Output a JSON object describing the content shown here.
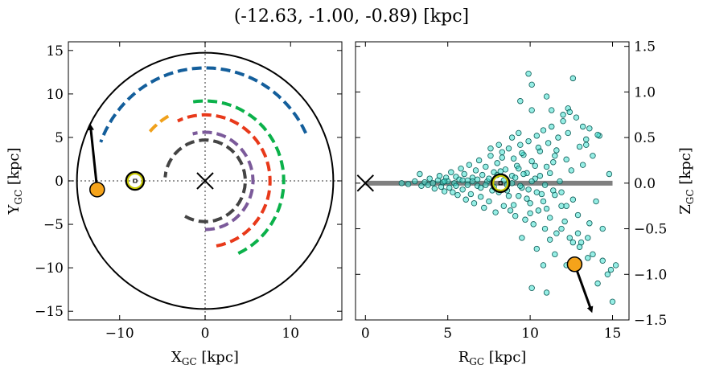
{
  "title": "(-12.63, -1.00, -0.89) [kpc]",
  "chart_data": [
    {
      "type": "scatter",
      "panel": "left",
      "xlabel": "X",
      "xlabel_sub": "GC",
      "xlabel_unit": " [kpc]",
      "ylabel": "Y",
      "ylabel_sub": "GC",
      "ylabel_unit": " [kpc]",
      "xlim": [
        -16,
        16
      ],
      "ylim": [
        -16,
        16
      ],
      "xticks": [
        -10,
        0,
        10
      ],
      "yticks": [
        -15,
        -10,
        -5,
        0,
        5,
        10,
        15
      ],
      "xtick_labels": [
        "−10",
        "0",
        "10"
      ],
      "ytick_labels": [
        "−15",
        "−10",
        "−5",
        "0",
        "5",
        "10",
        "15"
      ],
      "boundary_circle_radius": 15,
      "reference_lines": {
        "x": 0,
        "y": 0,
        "style": "dotted",
        "color": "#777777"
      },
      "galactic_center": {
        "x": 0,
        "y": 0,
        "marker": "x"
      },
      "sun": {
        "x": -8.2,
        "y": 0,
        "marker": "circle-dot",
        "color": "#c8c800"
      },
      "object": {
        "x": -12.63,
        "y": -1.0,
        "color": "#f5a31a"
      },
      "velocity_arrow": {
        "x0": -12.63,
        "y0": -1.0,
        "x1": -13.4,
        "y1": 6.2
      },
      "arms": [
        {
          "color": "#135e9b",
          "radius": 13.0,
          "start_deg": 25,
          "end_deg": 160
        },
        {
          "color": "#0bb14a",
          "radius": 9.2,
          "start_deg": -65,
          "end_deg": 100
        },
        {
          "color": "#e8391a",
          "radius": 7.6,
          "start_deg": -80,
          "end_deg": 115
        },
        {
          "color": "#7b5a9a",
          "radius": 5.6,
          "start_deg": -90,
          "end_deg": 105
        },
        {
          "color": "#444444",
          "radius": 4.7,
          "start_deg": -120,
          "end_deg": 175
        },
        {
          "color": "#f0a11c",
          "radius": 8.6,
          "start_deg": 120,
          "end_deg": 140
        }
      ]
    },
    {
      "type": "scatter",
      "panel": "right",
      "xlabel": "R",
      "xlabel_sub": "GC",
      "xlabel_unit": " [kpc]",
      "ylabel": "Z",
      "ylabel_sub": "GC",
      "ylabel_unit": " [kpc]",
      "xlim": [
        -0.6,
        16
      ],
      "ylim": [
        -1.5,
        1.55
      ],
      "xticks": [
        0,
        5,
        10,
        15
      ],
      "yticks": [
        -1.5,
        -1.0,
        -0.5,
        0.0,
        0.5,
        1.0,
        1.5
      ],
      "xtick_labels": [
        "0",
        "5",
        "10",
        "15"
      ],
      "ytick_labels": [
        "−1.5",
        "−1.0",
        "−0.5",
        "0.0",
        "0.5",
        "1.0",
        "1.5"
      ],
      "disk_line": {
        "x0": 0,
        "x1": 15,
        "y": 0,
        "color": "#808080"
      },
      "galactic_center": {
        "x": 0,
        "y": 0,
        "marker": "x"
      },
      "sun": {
        "x": 8.2,
        "y": 0,
        "marker": "circle-dot",
        "color": "#c8c800"
      },
      "object": {
        "x": 12.7,
        "y": -0.89,
        "color": "#f5a31a"
      },
      "velocity_arrow": {
        "x0": 12.7,
        "y0": -0.89,
        "x1": 13.7,
        "y1": -1.39
      },
      "points_color": "#40e0d0",
      "points": [
        [
          2.2,
          0.0
        ],
        [
          2.6,
          -0.01
        ],
        [
          3.0,
          0.02
        ],
        [
          3.3,
          0.1
        ],
        [
          3.4,
          -0.03
        ],
        [
          3.6,
          0.01
        ],
        [
          3.8,
          -0.02
        ],
        [
          3.9,
          0.05
        ],
        [
          4.1,
          0.0
        ],
        [
          4.2,
          -0.06
        ],
        [
          4.4,
          0.03
        ],
        [
          4.5,
          0.08
        ],
        [
          4.6,
          -0.04
        ],
        [
          4.7,
          0.01
        ],
        [
          4.8,
          -0.09
        ],
        [
          4.9,
          0.06
        ],
        [
          5.0,
          0.02
        ],
        [
          5.1,
          -0.05
        ],
        [
          5.2,
          0.12
        ],
        [
          5.3,
          -0.1
        ],
        [
          5.4,
          0.0
        ],
        [
          5.5,
          0.07
        ],
        [
          5.6,
          -0.13
        ],
        [
          5.7,
          0.04
        ],
        [
          5.8,
          0.16
        ],
        [
          5.9,
          -0.07
        ],
        [
          6.0,
          0.1
        ],
        [
          6.1,
          -0.18
        ],
        [
          6.2,
          0.03
        ],
        [
          6.3,
          0.2
        ],
        [
          6.4,
          -0.12
        ],
        [
          6.5,
          0.06
        ],
        [
          6.6,
          -0.22
        ],
        [
          6.7,
          0.14
        ],
        [
          6.8,
          -0.03
        ],
        [
          6.9,
          0.25
        ],
        [
          7.0,
          -0.15
        ],
        [
          7.1,
          0.09
        ],
        [
          7.2,
          -0.27
        ],
        [
          7.3,
          0.18
        ],
        [
          7.4,
          0.02
        ],
        [
          7.5,
          -0.2
        ],
        [
          7.6,
          0.3
        ],
        [
          7.7,
          -0.08
        ],
        [
          7.8,
          0.12
        ],
        [
          7.9,
          -0.32
        ],
        [
          8.0,
          0.22
        ],
        [
          8.1,
          -0.1
        ],
        [
          8.3,
          0.34
        ],
        [
          8.4,
          -0.25
        ],
        [
          8.5,
          0.15
        ],
        [
          8.6,
          -0.02
        ],
        [
          8.7,
          0.38
        ],
        [
          8.8,
          -0.3
        ],
        [
          8.9,
          0.08
        ],
        [
          9.0,
          0.27
        ],
        [
          9.1,
          -0.36
        ],
        [
          9.2,
          0.19
        ],
        [
          9.3,
          -0.14
        ],
        [
          9.4,
          0.42
        ],
        [
          9.5,
          -0.05
        ],
        [
          9.6,
          0.31
        ],
        [
          9.7,
          -0.4
        ],
        [
          9.8,
          0.11
        ],
        [
          9.9,
          0.46
        ],
        [
          10.0,
          -0.22
        ],
        [
          10.1,
          0.24
        ],
        [
          10.2,
          -0.45
        ],
        [
          10.3,
          0.05
        ],
        [
          10.4,
          0.52
        ],
        [
          10.5,
          -0.3
        ],
        [
          10.6,
          0.35
        ],
        [
          10.7,
          -0.12
        ],
        [
          10.8,
          0.58
        ],
        [
          10.9,
          -0.5
        ],
        [
          11.0,
          0.18
        ],
        [
          11.1,
          0.44
        ],
        [
          11.2,
          -0.38
        ],
        [
          11.3,
          0.62
        ],
        [
          11.4,
          -0.08
        ],
        [
          11.5,
          0.3
        ],
        [
          11.6,
          -0.55
        ],
        [
          11.7,
          0.5
        ],
        [
          11.8,
          0.02
        ],
        [
          11.9,
          -0.25
        ],
        [
          12.0,
          0.68
        ],
        [
          12.1,
          -0.42
        ],
        [
          12.2,
          0.26
        ],
        [
          12.3,
          0.55
        ],
        [
          12.4,
          -0.6
        ],
        [
          12.5,
          0.14
        ],
        [
          12.6,
          -0.18
        ],
        [
          12.8,
          0.72
        ],
        [
          12.9,
          -0.35
        ],
        [
          13.0,
          0.4
        ],
        [
          13.1,
          -0.65
        ],
        [
          13.2,
          0.2
        ],
        [
          13.4,
          0.48
        ],
        [
          13.6,
          -0.44
        ],
        [
          13.8,
          0.3
        ],
        [
          14.0,
          -0.2
        ],
        [
          14.2,
          0.52
        ],
        [
          14.4,
          -0.5
        ],
        [
          14.8,
          0.1
        ],
        [
          7.5,
          0.05
        ],
        [
          7.8,
          -0.04
        ],
        [
          8.0,
          0.09
        ],
        [
          8.4,
          0.03
        ],
        [
          8.6,
          -0.08
        ],
        [
          8.9,
          0.0
        ],
        [
          9.1,
          0.06
        ],
        [
          9.4,
          -0.03
        ],
        [
          9.6,
          0.1
        ],
        [
          9.9,
          -0.07
        ],
        [
          10.1,
          0.02
        ],
        [
          10.4,
          -0.1
        ],
        [
          10.6,
          0.08
        ],
        [
          10.9,
          -0.02
        ],
        [
          11.2,
          0.11
        ],
        [
          11.5,
          -0.13
        ],
        [
          6.5,
          0.02
        ],
        [
          6.8,
          0.04
        ],
        [
          7.0,
          -0.05
        ],
        [
          7.3,
          -0.02
        ],
        [
          5.5,
          -0.03
        ],
        [
          5.9,
          0.03
        ],
        [
          6.2,
          -0.02
        ],
        [
          4.8,
          0.02
        ],
        [
          8.2,
          0.13
        ],
        [
          8.7,
          -0.14
        ],
        [
          9.3,
          0.16
        ],
        [
          9.8,
          -0.17
        ],
        [
          10.3,
          0.19
        ],
        [
          10.8,
          -0.2
        ],
        [
          11.4,
          0.23
        ],
        [
          11.9,
          -0.1
        ],
        [
          8.3,
          0.28
        ],
        [
          9.0,
          -0.24
        ],
        [
          9.5,
          0.33
        ],
        [
          10.0,
          -0.33
        ],
        [
          10.5,
          0.39
        ],
        [
          11.0,
          -0.28
        ],
        [
          11.6,
          0.36
        ],
        [
          12.2,
          -0.25
        ],
        [
          9.9,
          1.2
        ],
        [
          10.1,
          1.08
        ],
        [
          12.6,
          1.15
        ],
        [
          11.0,
          0.95
        ],
        [
          12.3,
          0.82
        ],
        [
          12.0,
          0.75
        ],
        [
          11.3,
          0.8
        ],
        [
          12.4,
          0.78
        ],
        [
          8.9,
          0.5
        ],
        [
          9.3,
          0.55
        ],
        [
          10.1,
          0.8
        ],
        [
          9.4,
          0.9
        ],
        [
          13.2,
          0.62
        ],
        [
          13.6,
          0.6
        ],
        [
          14.1,
          0.53
        ],
        [
          13.4,
          0.42
        ],
        [
          8.1,
          0.42
        ],
        [
          7.6,
          0.38
        ],
        [
          9.5,
          -0.6
        ],
        [
          10.4,
          -0.72
        ],
        [
          11.2,
          -0.62
        ],
        [
          11.9,
          -0.5
        ],
        [
          12.9,
          -0.55
        ],
        [
          13.5,
          -0.6
        ],
        [
          13.8,
          -0.78
        ],
        [
          13.5,
          -0.82
        ],
        [
          14.4,
          -0.85
        ],
        [
          14.9,
          -0.95
        ],
        [
          15.0,
          -1.3
        ],
        [
          14.1,
          -1.1
        ],
        [
          14.7,
          -1.0
        ],
        [
          15.2,
          -0.9
        ],
        [
          10.1,
          -1.15
        ],
        [
          11.0,
          -1.2
        ],
        [
          12.2,
          -0.9
        ],
        [
          14.8,
          -1.55
        ],
        [
          13.0,
          -0.7
        ],
        [
          11.5,
          -0.78
        ],
        [
          10.8,
          -0.9
        ],
        [
          12.6,
          -0.65
        ]
      ]
    }
  ]
}
